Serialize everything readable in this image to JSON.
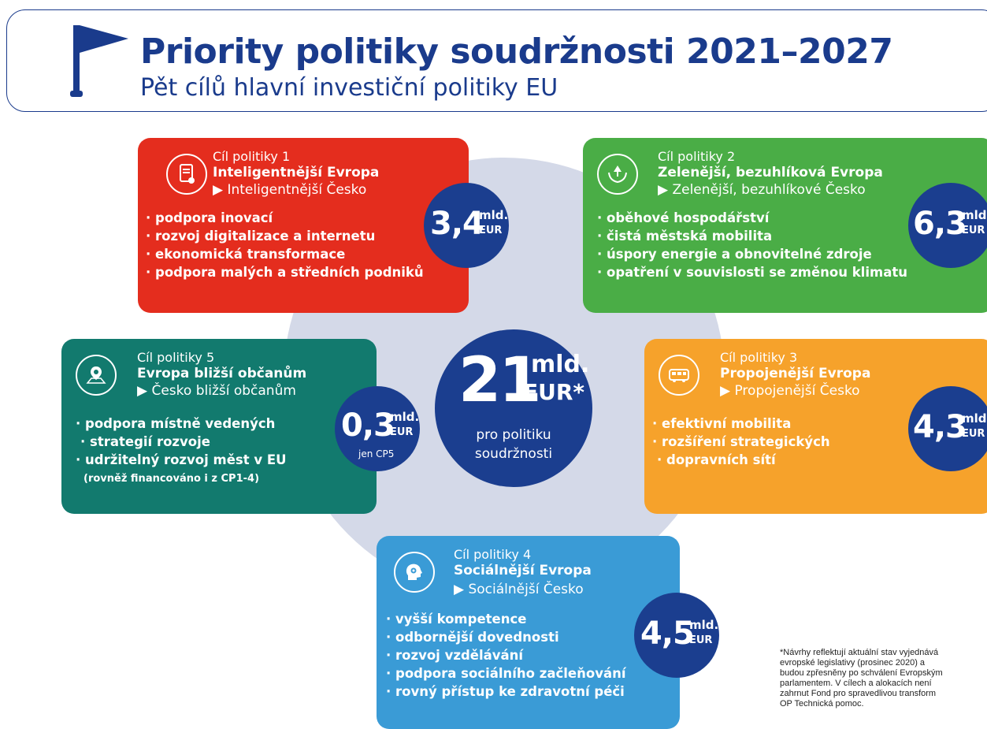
{
  "header": {
    "title": "Priority politiky soudržnosti 2021–2027",
    "subtitle": "Pět cílů hlavní investiční politiky EU"
  },
  "center": {
    "value": "21",
    "unit1": "mld.",
    "unit2": "EUR*",
    "note_line1": "pro politiku",
    "note_line2": "soudržnosti"
  },
  "goals": {
    "g1": {
      "label": "Cíl politiky 1",
      "name": "Inteligentnější Evropa",
      "cz": "▶ Inteligentnější Česko",
      "items": [
        "podpora inovací",
        "rozvoj digitalizace a internetu",
        "ekonomická transformace",
        "podpora malých a středních podniků"
      ],
      "amount": "3,4",
      "unit1": "mld.",
      "unit2": "EUR",
      "color": "#e42d1e",
      "icon": "tablet-hand-icon"
    },
    "g2": {
      "label": "Cíl politiky 2",
      "name": "Zelenější, bezuhlíková Evropa",
      "cz": "▶ Zelenější, bezuhlíkové Česko",
      "items": [
        "oběhové hospodářství",
        "čistá městská mobilita",
        "úspory energie a obnovitelné zdroje",
        "opatření v souvislosti se změnou klimatu"
      ],
      "amount": "6,3",
      "unit1": "mld.",
      "unit2": "EUR",
      "color": "#4aad46",
      "icon": "tree-hands-icon"
    },
    "g3": {
      "label": "Cíl politiky 3",
      "name": "Propojenější Evropa",
      "cz": "▶ Propojenější Česko",
      "items": [
        "efektivní mobilita",
        "rozšíření strategických",
        "dopravních sítí"
      ],
      "amount": "4,3",
      "unit1": "mld.",
      "unit2": "EUR",
      "color": "#f6a22b",
      "icon": "bus-icon"
    },
    "g4": {
      "label": "Cíl politiky 4",
      "name": "Sociálnější Evropa",
      "cz": "▶ Sociálnější Česko",
      "items": [
        "vyšší kompetence",
        "odbornější dovednosti",
        "rozvoj vzdělávání",
        "podpora sociálního začleňování",
        "rovný přístup ke zdravotní péči"
      ],
      "amount": "4,5",
      "unit1": "mld.",
      "unit2": "EUR",
      "color": "#3a9bd6",
      "icon": "head-gear-icon"
    },
    "g5": {
      "label": "Cíl politiky 5",
      "name": "Evropa bližší občanům",
      "cz": "▶ Česko bližší občanům",
      "items": [
        "podpora místně vedených",
        "strategií rozvoje",
        "udržitelný rozvoj měst v EU"
      ],
      "extra": "(rovněž financováno i z CP1-4)",
      "amount": "0,3",
      "unit1": "mld.",
      "unit2": "EUR",
      "only": "jen CP5",
      "color": "#127a6e",
      "icon": "map-pin-icon"
    }
  },
  "footnote": "*Návrhy reflektují aktuální stav vyjednává\nevropské legislativy (prosinec 2020) a\nbudou zpřesněny po schválení Evropským\nparlamentem. V cílech a alokacích není\nzahrnut Fond pro spravedlivou transform\nOP Technická pomoc.",
  "colors": {
    "navy": "#1b3e8f",
    "circle": "#d4d9e8"
  }
}
